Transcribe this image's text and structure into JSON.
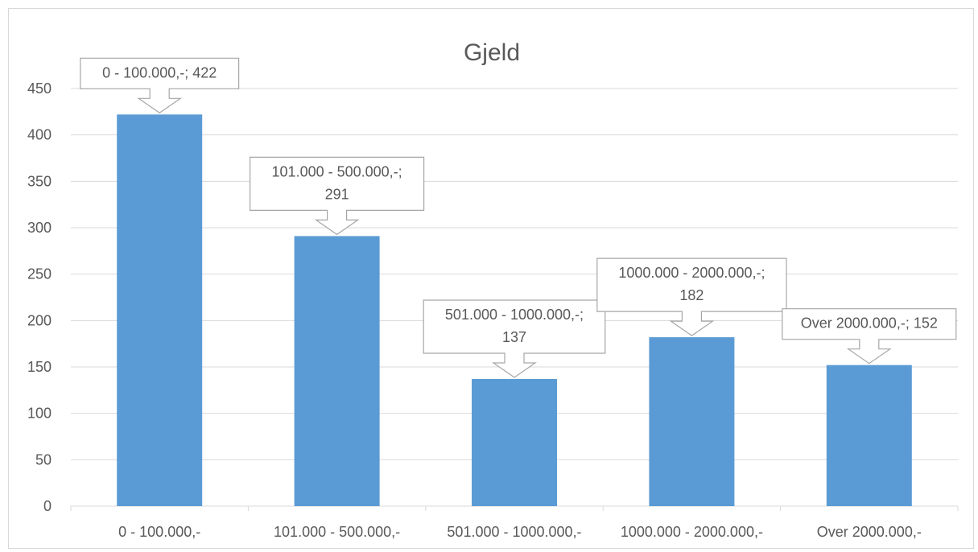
{
  "chart_data": {
    "type": "bar",
    "title": "Gjeld",
    "xlabel": "",
    "ylabel": "",
    "categories": [
      "0 - 100.000,-",
      "101.000 - 500.000,-",
      "501.000 - 1000.000,-",
      "1000.000 - 2000.000,-",
      "Over 2000.000,-"
    ],
    "values": [
      422,
      291,
      137,
      182,
      152
    ],
    "data_labels": [
      [
        "0 - 100.000,-; 422"
      ],
      [
        "101.000 - 500.000,-;",
        "291"
      ],
      [
        "501.000 - 1000.000,-;",
        "137"
      ],
      [
        "1000.000 - 2000.000,-;",
        "182"
      ],
      [
        "Over 2000.000,-; 152"
      ]
    ],
    "yticks": [
      0,
      50,
      100,
      150,
      200,
      250,
      300,
      350,
      400,
      450
    ],
    "ylim": [
      0,
      450
    ],
    "grid": true,
    "legend": "none",
    "colors": {
      "bar": "#5b9bd5",
      "grid": "#d9d9d9",
      "text": "#595959",
      "callout_border": "#a6a6a6"
    }
  }
}
